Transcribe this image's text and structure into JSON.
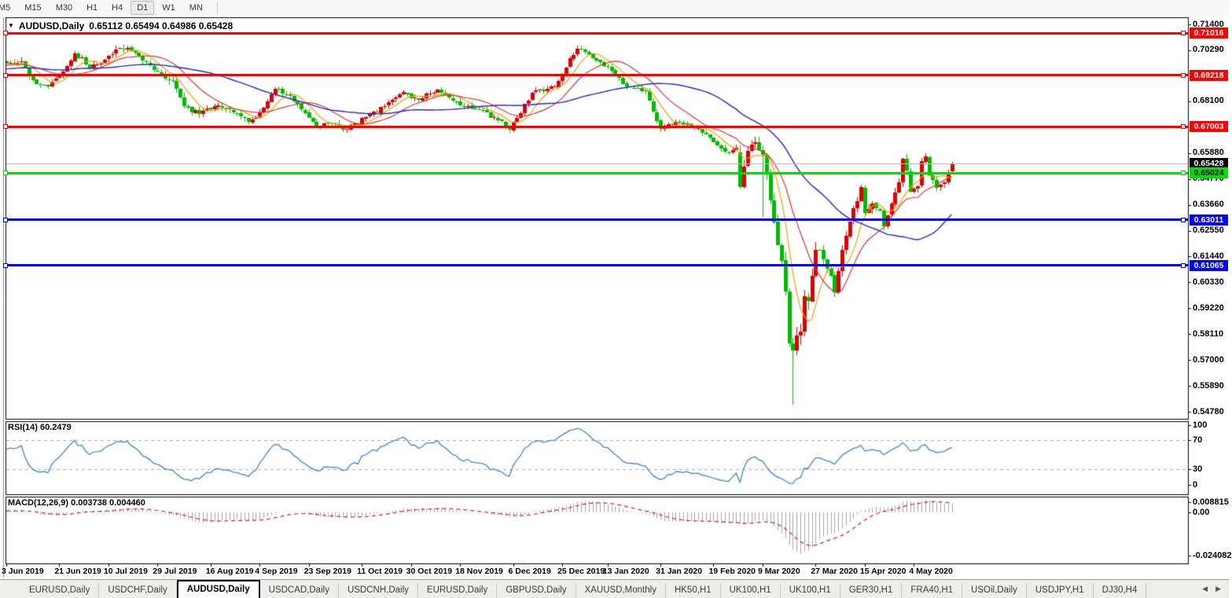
{
  "toolbar": {
    "timeframes": [
      "M5",
      "M15",
      "M30",
      "H1",
      "H4",
      "D1",
      "W1",
      "MN"
    ],
    "active": "D1"
  },
  "chart": {
    "symbol": "AUDUSD,Daily",
    "ohlc_line": "0.65112 0.65494 0.64986 0.65428"
  },
  "chart_data": {
    "type": "candlestick",
    "title": "AUDUSD,Daily",
    "open": 0.65112,
    "high": 0.65494,
    "low": 0.64986,
    "close": 0.65428,
    "candle_colors": {
      "up": "#DF0000",
      "down": "#00BC00"
    },
    "y_axis_ticks": [
      "0.71400",
      "0.70290",
      "0.68100",
      "0.65880",
      "0.64770",
      "0.63660",
      "0.62550",
      "0.61440",
      "0.60330",
      "0.59220",
      "0.58110",
      "0.57000",
      "0.55890",
      "0.54780"
    ],
    "x_labels": [
      {
        "text": "3 Jun 2019",
        "day": 0
      },
      {
        "text": "21 Jun 2019",
        "day": 14
      },
      {
        "text": "10 Jul 2019",
        "day": 27
      },
      {
        "text": "29 Jul 2019",
        "day": 40
      },
      {
        "text": "16 Aug 2019",
        "day": 54
      },
      {
        "text": "4 Sep 2019",
        "day": 67
      },
      {
        "text": "23 Sep 2019",
        "day": 80
      },
      {
        "text": "11 Oct 2019",
        "day": 94
      },
      {
        "text": "30 Oct 2019",
        "day": 107
      },
      {
        "text": "18 Nov 2019",
        "day": 120
      },
      {
        "text": "6 Dec 2019",
        "day": 134
      },
      {
        "text": "25 Dec 2019",
        "day": 147
      },
      {
        "text": "13 Jan 2020",
        "day": 159
      },
      {
        "text": "31 Jan 2020",
        "day": 173
      },
      {
        "text": "19 Feb 2020",
        "day": 187
      },
      {
        "text": "9 Mar 2020",
        "day": 200
      },
      {
        "text": "27 Mar 2020",
        "day": 214
      },
      {
        "text": "15 Apr 2020",
        "day": 227
      },
      {
        "text": "4 May 2020",
        "day": 240
      }
    ],
    "levels": [
      {
        "label": "0.71016",
        "price": 0.71016,
        "color": "#FF0000",
        "text_color": "#FFFFFF"
      },
      {
        "label": "0.69218",
        "price": 0.69218,
        "color": "#FF0000",
        "text_color": "#FFFFFF"
      },
      {
        "label": "0.67003",
        "price": 0.67003,
        "color": "#FF0000",
        "text_color": "#FFFFFF"
      },
      {
        "label": "0.65024",
        "price": 0.65024,
        "color": "#00DF00",
        "text_color": "#000000"
      },
      {
        "label": "0.63011",
        "price": 0.63011,
        "color": "#0000FF",
        "text_color": "#FFFFFF"
      },
      {
        "label": "0.61065",
        "price": 0.61065,
        "color": "#0000FF",
        "text_color": "#FFFFFF"
      }
    ],
    "current_price": {
      "value": 0.65428,
      "label": "0.65428",
      "line_color": "#BBBBBB",
      "badge_bg": "#000000",
      "badge_text": "#FFFFFF"
    },
    "moving_averages": [
      {
        "period": 7,
        "color": "#F0A000"
      },
      {
        "period": 15,
        "color": "#DD3333"
      },
      {
        "period": 40,
        "color": "#2626C8"
      }
    ],
    "price_path": [
      [
        0,
        0.697,
        0.004
      ],
      [
        4,
        0.6982,
        0.0035
      ],
      [
        8,
        0.6885,
        0.004
      ],
      [
        11,
        0.6872,
        0.0035
      ],
      [
        14,
        0.692,
        0.0035
      ],
      [
        18,
        0.7016,
        0.0035
      ],
      [
        22,
        0.6952,
        0.0035
      ],
      [
        27,
        0.7006,
        0.0035
      ],
      [
        32,
        0.704,
        0.0035
      ],
      [
        36,
        0.6985,
        0.003
      ],
      [
        40,
        0.6938,
        0.0035
      ],
      [
        44,
        0.6896,
        0.0042
      ],
      [
        47,
        0.679,
        0.0046
      ],
      [
        51,
        0.6757,
        0.004
      ],
      [
        56,
        0.6792,
        0.0035
      ],
      [
        60,
        0.6762,
        0.0034
      ],
      [
        64,
        0.6722,
        0.0035
      ],
      [
        68,
        0.6782,
        0.0034
      ],
      [
        71,
        0.6862,
        0.0034
      ],
      [
        75,
        0.6832,
        0.003
      ],
      [
        79,
        0.676,
        0.0032
      ],
      [
        82,
        0.6702,
        0.0035
      ],
      [
        86,
        0.6712,
        0.0034
      ],
      [
        90,
        0.6692,
        0.0034
      ],
      [
        95,
        0.6742,
        0.003
      ],
      [
        101,
        0.6806,
        0.003
      ],
      [
        105,
        0.685,
        0.0029
      ],
      [
        109,
        0.6815,
        0.0028
      ],
      [
        114,
        0.686,
        0.0028
      ],
      [
        120,
        0.6792,
        0.0028
      ],
      [
        126,
        0.6772,
        0.0027
      ],
      [
        133,
        0.6688,
        0.0029
      ],
      [
        139,
        0.6846,
        0.0029
      ],
      [
        145,
        0.6872,
        0.0028
      ],
      [
        151,
        0.7036,
        0.0031
      ],
      [
        156,
        0.6986,
        0.0029
      ],
      [
        160,
        0.6942,
        0.0028
      ],
      [
        164,
        0.6872,
        0.0028
      ],
      [
        169,
        0.6852,
        0.0026
      ],
      [
        173,
        0.6692,
        0.0031
      ],
      [
        177,
        0.6722,
        0.0029
      ],
      [
        183,
        0.6695,
        0.0026
      ],
      [
        188,
        0.6622,
        0.003
      ],
      [
        191,
        0.6588,
        0.0034
      ],
      [
        193,
        0.6612,
        0.0038
      ],
      [
        194,
        0.6442,
        0.0075
      ],
      [
        196,
        0.6598,
        0.0058
      ],
      [
        198,
        0.6636,
        0.0048
      ],
      [
        200,
        0.6582,
        0.0085
      ],
      [
        201,
        0.6498,
        0.0068
      ],
      [
        203,
        0.6292,
        0.0078
      ],
      [
        204,
        0.6192,
        0.0078
      ],
      [
        205,
        0.6125,
        0.0088
      ],
      [
        206,
        0.5995,
        0.0098
      ],
      [
        207,
        0.5772,
        0.0115
      ],
      [
        208,
        0.5742,
        0.0125
      ],
      [
        209,
        0.5805,
        0.0098
      ],
      [
        210,
        0.5822,
        0.0088
      ],
      [
        211,
        0.5972,
        0.0088
      ],
      [
        212,
        0.5952,
        0.0078
      ],
      [
        213,
        0.6062,
        0.0078
      ],
      [
        214,
        0.6172,
        0.0068
      ],
      [
        215,
        0.6172,
        0.0058
      ],
      [
        216,
        0.6132,
        0.0058
      ],
      [
        217,
        0.6092,
        0.0054
      ],
      [
        218,
        0.6062,
        0.0054
      ],
      [
        219,
        0.5992,
        0.0058
      ],
      [
        220,
        0.6082,
        0.0054
      ],
      [
        221,
        0.6172,
        0.005
      ],
      [
        222,
        0.6232,
        0.005
      ],
      [
        224,
        0.6352,
        0.0048
      ],
      [
        225,
        0.6382,
        0.0044
      ],
      [
        226,
        0.6442,
        0.0044
      ],
      [
        227,
        0.6332,
        0.0044
      ],
      [
        229,
        0.6372,
        0.004
      ],
      [
        231,
        0.6342,
        0.004
      ],
      [
        232,
        0.6272,
        0.0044
      ],
      [
        234,
        0.6372,
        0.004
      ],
      [
        236,
        0.6462,
        0.004
      ],
      [
        237,
        0.6562,
        0.004
      ],
      [
        238,
        0.6512,
        0.004
      ],
      [
        239,
        0.6422,
        0.0042
      ],
      [
        240,
        0.6435,
        0.0038
      ],
      [
        241,
        0.6445,
        0.0038
      ],
      [
        242,
        0.6552,
        0.0038
      ],
      [
        243,
        0.6572,
        0.0036
      ],
      [
        244,
        0.6492,
        0.0036
      ],
      [
        245,
        0.6472,
        0.0036
      ],
      [
        246,
        0.6438,
        0.0036
      ],
      [
        247,
        0.6452,
        0.0036
      ],
      [
        248,
        0.6462,
        0.0034
      ],
      [
        249,
        0.6505,
        0.0034
      ],
      [
        250,
        0.65428,
        0.0034
      ]
    ],
    "special_candles": {
      "194": {
        "open": 0.659,
        "low": 0.6434
      },
      "200": {
        "low": 0.6313
      },
      "208": {
        "low": 0.551
      },
      "250": {
        "open": 0.65112,
        "high": 0.65494,
        "low": 0.64986,
        "close": 0.65428
      }
    },
    "rsi": {
      "label": "RSI(14)",
      "value": "60.2479",
      "scale": [
        "100",
        "70",
        "30",
        "0"
      ],
      "grid_levels": [
        70,
        30
      ],
      "color": "#3C86CC"
    },
    "macd": {
      "label": "MACD(12,26,9)",
      "values": "0.003738 0.004460",
      "scale": [
        "0.008815",
        "0.00",
        "-0.024082"
      ],
      "histogram_color": "#A6A6A6",
      "signal_color": "#CC2222"
    }
  },
  "tabs": {
    "items": [
      "EURUSD,Daily",
      "USDCHF,Daily",
      "AUDUSD,Daily",
      "USDCAD,Daily",
      "USDCNH,Daily",
      "EURUSD,Daily",
      "GBPUSD,Daily",
      "XAUUSD,Monthly",
      "HK50,H1",
      "UK100,H1",
      "UK100,H1",
      "GER30,H1",
      "FRA40,H1",
      "USOil,Daily",
      "USDJPY,H1",
      "DJ30,H4"
    ],
    "active_index": 2
  },
  "nav": {
    "left_arrow": "◀",
    "right_arrow": "▶"
  }
}
